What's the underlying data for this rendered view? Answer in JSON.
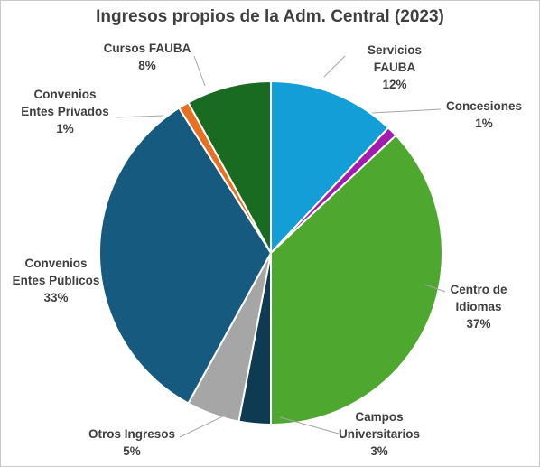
{
  "chart_data": {
    "type": "pie",
    "title": "Ingresos propios de la Adm. Central (2023)",
    "slices": [
      {
        "label": [
          "Servicios",
          "FAUBA"
        ],
        "value": 12,
        "percent_label": "12%",
        "color": "#139ed8"
      },
      {
        "label": [
          "Concesiones"
        ],
        "value": 1,
        "percent_label": "1%",
        "color": "#a21caf"
      },
      {
        "label": [
          "Centro de",
          "Idiomas"
        ],
        "value": 37,
        "percent_label": "37%",
        "color": "#4ea72e"
      },
      {
        "label": [
          "Campos",
          "Universitarios"
        ],
        "value": 3,
        "percent_label": "3%",
        "color": "#0e3a52"
      },
      {
        "label": [
          "Otros Ingresos"
        ],
        "value": 5,
        "percent_label": "5%",
        "color": "#a6a6a6"
      },
      {
        "label": [
          "Convenios",
          "Entes Públicos"
        ],
        "value": 33,
        "percent_label": "33%",
        "color": "#175a80"
      },
      {
        "label": [
          "Convenios",
          "Entes Privados"
        ],
        "value": 1,
        "percent_label": "1%",
        "color": "#e87025"
      },
      {
        "label": [
          "Cursos FAUBA"
        ],
        "value": 8,
        "percent_label": "8%",
        "color": "#1a6b22"
      }
    ],
    "legend": "none",
    "data_labels": "outside with leader lines"
  }
}
